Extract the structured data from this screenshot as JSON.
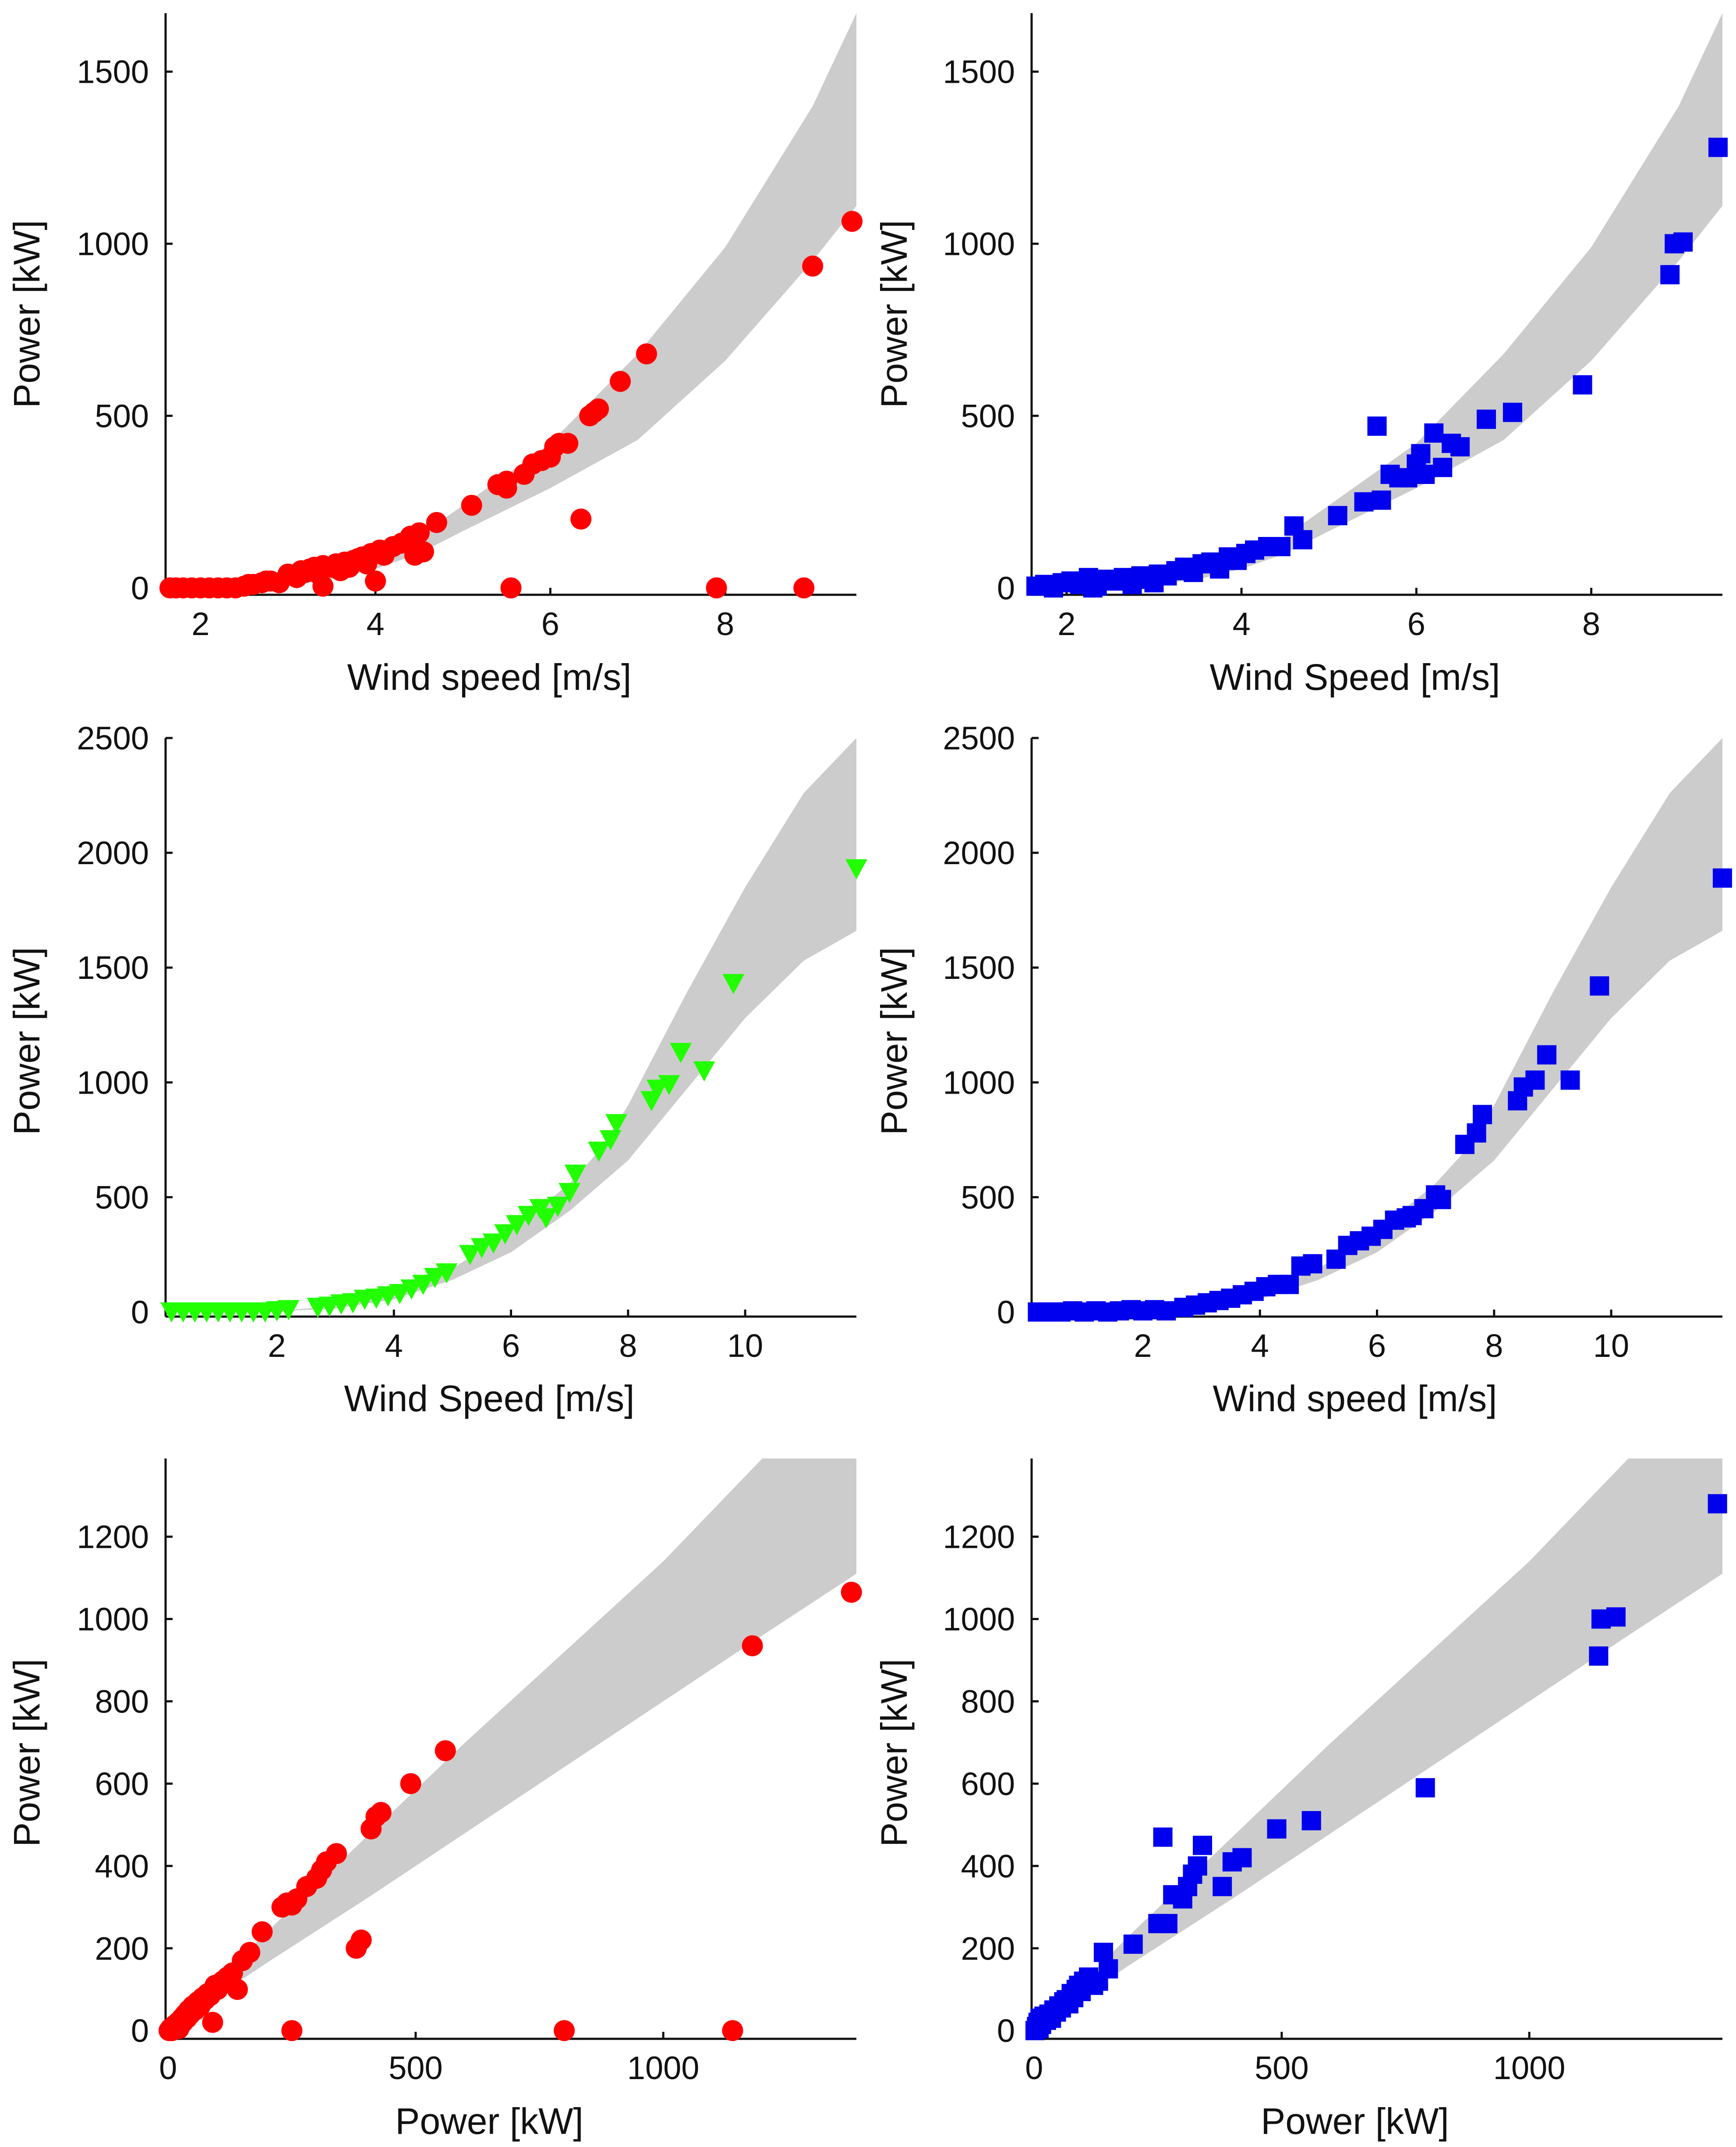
{
  "colors": {
    "band": "#cccccc",
    "red": "#ff0000",
    "blue": "#0000ee",
    "green": "#22ff00",
    "axis": "#111111"
  },
  "chart_data": [
    {
      "id": "p1",
      "type": "scatter",
      "xlabel": "Wind speed [m/s]",
      "ylabel": "Power [kW]",
      "xlim": [
        1.6,
        9.5
      ],
      "ylim": [
        -20,
        1670
      ],
      "xticks": [
        2,
        4,
        6,
        8
      ],
      "yticks": [
        0,
        500,
        1000,
        1500
      ],
      "marker": "circle",
      "color": "red",
      "band_upper": [
        [
          1.6,
          0
        ],
        [
          2,
          1
        ],
        [
          3,
          15
        ],
        [
          3.5,
          40
        ],
        [
          4,
          85
        ],
        [
          4.5,
          150
        ],
        [
          5,
          240
        ],
        [
          6,
          420
        ],
        [
          7,
          680
        ],
        [
          8,
          990
        ],
        [
          9,
          1400
        ],
        [
          9.5,
          1670
        ]
      ],
      "band_lower": [
        [
          1.6,
          0
        ],
        [
          2,
          1
        ],
        [
          3,
          10
        ],
        [
          3.5,
          25
        ],
        [
          4,
          55
        ],
        [
          4.5,
          100
        ],
        [
          5,
          165
        ],
        [
          6,
          290
        ],
        [
          7,
          430
        ],
        [
          8,
          660
        ],
        [
          9,
          950
        ],
        [
          9.5,
          1110
        ]
      ],
      "x": [
        1.65,
        1.72,
        1.8,
        1.9,
        2.0,
        2.1,
        2.2,
        2.3,
        2.4,
        2.5,
        2.55,
        2.6,
        2.7,
        2.75,
        2.8,
        2.9,
        3.0,
        3.1,
        3.15,
        3.2,
        3.25,
        3.3,
        3.35,
        3.4,
        3.5,
        3.55,
        3.6,
        3.65,
        3.7,
        3.75,
        3.8,
        3.85,
        3.9,
        3.95,
        4.0,
        4.05,
        4.1,
        4.2,
        4.3,
        4.4,
        4.45,
        4.5,
        4.55,
        4.7,
        5.1,
        5.4,
        5.5,
        5.55,
        5.7,
        5.8,
        5.9,
        6.0,
        6.05,
        6.1,
        6.2,
        6.35,
        6.45,
        6.5,
        6.55,
        6.8,
        7.1,
        7.9,
        8.9,
        9.0,
        9.45,
        4.0,
        3.4,
        5.5
      ],
      "y": [
        0,
        0,
        0,
        0,
        0,
        0,
        0,
        0,
        0,
        5,
        10,
        10,
        15,
        20,
        20,
        15,
        40,
        30,
        50,
        45,
        55,
        60,
        40,
        65,
        60,
        70,
        50,
        75,
        60,
        80,
        85,
        90,
        70,
        100,
        100,
        110,
        95,
        120,
        130,
        150,
        95,
        160,
        105,
        190,
        240,
        300,
        310,
        0,
        330,
        360,
        370,
        380,
        410,
        420,
        420,
        200,
        500,
        510,
        520,
        600,
        680,
        0,
        0,
        935,
        1065,
        20,
        5,
        290
      ]
    },
    {
      "id": "p2",
      "type": "scatter",
      "xlabel": "Wind Speed [m/s]",
      "ylabel": "Power [kW]",
      "xlim": [
        1.6,
        9.5
      ],
      "ylim": [
        -20,
        1670
      ],
      "xticks": [
        2,
        4,
        6,
        8
      ],
      "yticks": [
        0,
        500,
        1000,
        1500
      ],
      "marker": "square",
      "color": "blue",
      "band_upper": [
        [
          1.6,
          0
        ],
        [
          2,
          1
        ],
        [
          3,
          15
        ],
        [
          3.5,
          40
        ],
        [
          4,
          85
        ],
        [
          4.5,
          150
        ],
        [
          5,
          240
        ],
        [
          6,
          420
        ],
        [
          7,
          680
        ],
        [
          8,
          990
        ],
        [
          9,
          1400
        ],
        [
          9.5,
          1670
        ]
      ],
      "band_lower": [
        [
          1.6,
          0
        ],
        [
          2,
          1
        ],
        [
          3,
          10
        ],
        [
          3.5,
          25
        ],
        [
          4,
          55
        ],
        [
          4.5,
          100
        ],
        [
          5,
          165
        ],
        [
          6,
          290
        ],
        [
          7,
          430
        ],
        [
          8,
          660
        ],
        [
          9,
          950
        ],
        [
          9.5,
          1110
        ]
      ],
      "x": [
        1.65,
        1.75,
        1.85,
        1.95,
        2.05,
        2.15,
        2.25,
        2.35,
        2.45,
        2.55,
        2.65,
        2.75,
        2.85,
        2.95,
        3.05,
        3.15,
        3.25,
        3.35,
        3.45,
        3.55,
        3.65,
        3.75,
        3.85,
        3.95,
        4.05,
        4.15,
        4.3,
        4.45,
        4.6,
        4.7,
        5.1,
        5.4,
        5.55,
        5.6,
        5.7,
        5.8,
        5.9,
        6.0,
        6.05,
        6.1,
        6.2,
        6.3,
        6.4,
        6.5,
        6.8,
        7.1,
        7.9,
        8.9,
        8.95,
        9.05,
        9.45,
        2.3,
        3.0
      ],
      "y": [
        5,
        10,
        0,
        15,
        20,
        10,
        30,
        5,
        25,
        20,
        30,
        10,
        35,
        25,
        40,
        35,
        50,
        60,
        45,
        70,
        75,
        55,
        90,
        80,
        100,
        110,
        120,
        120,
        180,
        140,
        210,
        250,
        470,
        255,
        330,
        320,
        320,
        360,
        390,
        330,
        450,
        350,
        420,
        410,
        490,
        510,
        590,
        910,
        1000,
        1005,
        1280,
        0,
        15
      ]
    },
    {
      "id": "p3",
      "type": "scatter",
      "xlabel": "Wind Speed [m/s]",
      "ylabel": "Power [kW]",
      "xlim": [
        0.1,
        11.9
      ],
      "ylim": [
        -20,
        2500
      ],
      "xticks": [
        2,
        4,
        6,
        8,
        10
      ],
      "yticks": [
        0,
        500,
        1000,
        1500,
        2000,
        2500
      ],
      "marker": "triangle-down",
      "color": "green",
      "band_upper": [
        [
          0.1,
          0
        ],
        [
          1,
          0
        ],
        [
          2,
          5
        ],
        [
          3,
          25
        ],
        [
          4,
          80
        ],
        [
          5,
          190
        ],
        [
          6,
          350
        ],
        [
          7,
          560
        ],
        [
          7.5,
          700
        ],
        [
          8,
          900
        ],
        [
          9,
          1390
        ],
        [
          10,
          1850
        ],
        [
          11,
          2260
        ],
        [
          11.9,
          2500
        ]
      ],
      "band_lower": [
        [
          0.1,
          0
        ],
        [
          1,
          0
        ],
        [
          2,
          3
        ],
        [
          3,
          15
        ],
        [
          4,
          55
        ],
        [
          5,
          140
        ],
        [
          6,
          260
        ],
        [
          7,
          440
        ],
        [
          8,
          660
        ],
        [
          9,
          970
        ],
        [
          10,
          1280
        ],
        [
          11,
          1530
        ],
        [
          11.9,
          1660
        ]
      ],
      "x": [
        0.2,
        0.4,
        0.6,
        0.8,
        1.0,
        1.2,
        1.4,
        1.6,
        1.8,
        2.0,
        2.2,
        2.7,
        2.9,
        3.1,
        3.3,
        3.5,
        3.7,
        3.9,
        4.1,
        4.3,
        4.5,
        4.7,
        4.9,
        5.3,
        5.5,
        5.7,
        5.9,
        6.1,
        6.3,
        6.5,
        6.6,
        6.8,
        7.0,
        7.1,
        7.5,
        7.7,
        7.8,
        8.4,
        8.5,
        8.7,
        8.9,
        9.3,
        9.8,
        11.9
      ],
      "y": [
        0,
        0,
        0,
        0,
        0,
        0,
        0,
        0,
        0,
        5,
        10,
        20,
        25,
        35,
        40,
        55,
        60,
        70,
        80,
        100,
        120,
        150,
        170,
        250,
        280,
        300,
        340,
        380,
        420,
        450,
        410,
        460,
        520,
        600,
        700,
        750,
        820,
        920,
        970,
        990,
        1130,
        1050,
        1430,
        1930
      ]
    },
    {
      "id": "p4",
      "type": "scatter",
      "xlabel": "Wind speed [m/s]",
      "ylabel": "Power [kW]",
      "xlim": [
        0.1,
        11.9
      ],
      "ylim": [
        -20,
        2500
      ],
      "xticks": [
        2,
        4,
        6,
        8,
        10
      ],
      "yticks": [
        0,
        500,
        1000,
        1500,
        2000,
        2500
      ],
      "marker": "square",
      "color": "blue",
      "band_upper": [
        [
          0.1,
          0
        ],
        [
          1,
          0
        ],
        [
          2,
          5
        ],
        [
          3,
          25
        ],
        [
          4,
          80
        ],
        [
          5,
          190
        ],
        [
          6,
          350
        ],
        [
          7,
          560
        ],
        [
          7.5,
          700
        ],
        [
          8,
          900
        ],
        [
          9,
          1390
        ],
        [
          10,
          1850
        ],
        [
          11,
          2260
        ],
        [
          11.9,
          2500
        ]
      ],
      "band_lower": [
        [
          0.1,
          0
        ],
        [
          1,
          0
        ],
        [
          2,
          3
        ],
        [
          3,
          15
        ],
        [
          4,
          55
        ],
        [
          5,
          140
        ],
        [
          6,
          260
        ],
        [
          7,
          440
        ],
        [
          8,
          660
        ],
        [
          9,
          970
        ],
        [
          10,
          1280
        ],
        [
          11,
          1530
        ],
        [
          11.9,
          1660
        ]
      ],
      "x": [
        0.2,
        0.4,
        0.6,
        0.8,
        1.0,
        1.2,
        1.4,
        1.6,
        1.8,
        2.0,
        2.2,
        2.4,
        2.7,
        2.9,
        3.1,
        3.3,
        3.5,
        3.7,
        3.9,
        4.1,
        4.3,
        4.5,
        4.7,
        4.9,
        5.3,
        5.5,
        5.7,
        5.9,
        6.1,
        6.3,
        6.5,
        6.6,
        6.8,
        7.0,
        7.1,
        7.5,
        7.7,
        7.8,
        8.4,
        8.5,
        8.7,
        8.9,
        9.3,
        9.8,
        11.9
      ],
      "y": [
        0,
        0,
        0,
        5,
        0,
        5,
        0,
        5,
        10,
        5,
        10,
        5,
        20,
        30,
        40,
        50,
        60,
        75,
        90,
        110,
        120,
        120,
        200,
        210,
        230,
        290,
        310,
        330,
        360,
        400,
        410,
        420,
        450,
        510,
        490,
        730,
        780,
        860,
        920,
        980,
        1010,
        1120,
        1010,
        1420,
        1890
      ]
    },
    {
      "id": "p5",
      "type": "scatter",
      "xlabel": "Power [kW]",
      "ylabel": "Power [kW]",
      "xlim": [
        -5,
        1390
      ],
      "ylim": [
        -20,
        1390
      ],
      "xticks": [
        0,
        500,
        1000
      ],
      "yticks": [
        0,
        200,
        400,
        600,
        800,
        1000,
        1200
      ],
      "marker": "circle",
      "color": "red",
      "band_upper": [
        [
          0,
          0
        ],
        [
          100,
          120
        ],
        [
          200,
          240
        ],
        [
          400,
          470
        ],
        [
          600,
          700
        ],
        [
          800,
          920
        ],
        [
          1000,
          1140
        ],
        [
          1200,
          1390
        ],
        [
          1390,
          1390
        ]
      ],
      "band_lower": [
        [
          0,
          0
        ],
        [
          100,
          85
        ],
        [
          200,
          165
        ],
        [
          400,
          320
        ],
        [
          600,
          480
        ],
        [
          800,
          640
        ],
        [
          1000,
          800
        ],
        [
          1200,
          960
        ],
        [
          1390,
          1110
        ]
      ],
      "x": [
        2,
        5,
        8,
        10,
        12,
        15,
        18,
        20,
        22,
        25,
        28,
        30,
        32,
        35,
        38,
        40,
        42,
        45,
        48,
        50,
        55,
        60,
        65,
        70,
        75,
        80,
        85,
        90,
        95,
        100,
        110,
        120,
        130,
        140,
        150,
        165,
        190,
        230,
        240,
        250,
        260,
        280,
        300,
        310,
        320,
        340,
        380,
        390,
        410,
        420,
        430,
        490,
        560,
        1180,
        1380,
        250,
        800,
        1140
      ],
      "y": [
        0,
        5,
        0,
        10,
        5,
        15,
        10,
        20,
        5,
        25,
        30,
        20,
        35,
        40,
        30,
        45,
        50,
        40,
        55,
        60,
        50,
        70,
        60,
        80,
        75,
        90,
        85,
        20,
        110,
        100,
        120,
        130,
        140,
        100,
        170,
        190,
        240,
        300,
        310,
        305,
        320,
        350,
        370,
        390,
        410,
        430,
        200,
        220,
        490,
        520,
        530,
        600,
        680,
        935,
        1065,
        0,
        0,
        0
      ]
    },
    {
      "id": "p6",
      "type": "scatter",
      "xlabel": "Power [kW]",
      "ylabel": "Power [kW]",
      "xlim": [
        -5,
        1390
      ],
      "ylim": [
        -20,
        1390
      ],
      "xticks": [
        0,
        500,
        1000
      ],
      "yticks": [
        0,
        200,
        400,
        600,
        800,
        1000,
        1200
      ],
      "marker": "square",
      "color": "blue",
      "band_upper": [
        [
          0,
          0
        ],
        [
          100,
          120
        ],
        [
          200,
          240
        ],
        [
          400,
          470
        ],
        [
          600,
          700
        ],
        [
          800,
          920
        ],
        [
          1000,
          1140
        ],
        [
          1200,
          1390
        ],
        [
          1390,
          1390
        ]
      ],
      "band_lower": [
        [
          0,
          0
        ],
        [
          100,
          85
        ],
        [
          200,
          165
        ],
        [
          400,
          320
        ],
        [
          600,
          480
        ],
        [
          800,
          640
        ],
        [
          1000,
          800
        ],
        [
          1200,
          960
        ],
        [
          1390,
          1110
        ]
      ],
      "x": [
        2,
        5,
        8,
        10,
        12,
        15,
        20,
        25,
        30,
        35,
        40,
        45,
        50,
        55,
        60,
        65,
        70,
        75,
        80,
        85,
        90,
        95,
        100,
        110,
        120,
        130,
        140,
        150,
        200,
        250,
        260,
        270,
        280,
        300,
        310,
        320,
        330,
        340,
        380,
        400,
        420,
        490,
        560,
        790,
        1140,
        1145,
        1175,
        1380
      ],
      "y": [
        0,
        10,
        20,
        5,
        30,
        15,
        35,
        25,
        40,
        30,
        50,
        45,
        60,
        55,
        70,
        75,
        65,
        90,
        80,
        100,
        110,
        95,
        120,
        130,
        110,
        120,
        190,
        150,
        210,
        260,
        470,
        260,
        330,
        320,
        350,
        380,
        400,
        450,
        350,
        410,
        420,
        490,
        510,
        590,
        910,
        1000,
        1005,
        1280
      ]
    }
  ]
}
